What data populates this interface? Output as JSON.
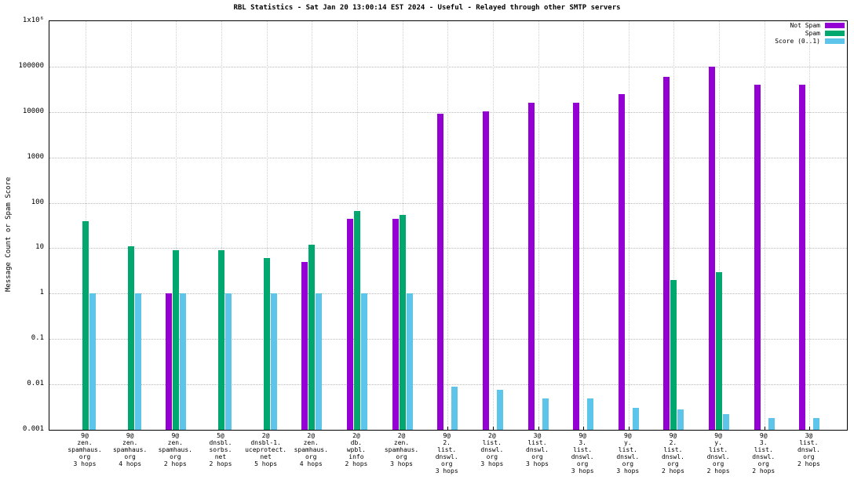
{
  "chart_data": {
    "type": "bar",
    "title": "RBL Statistics - Sat Jan 20 13:00:14 EST 2024 - Useful - Relayed through other SMTP servers",
    "ylabel": "Message Count or Spam Score",
    "xlabel": "",
    "y_scale": "log",
    "ylim": [
      0.001,
      1000000
    ],
    "grid": true,
    "legend_position": "top-right",
    "yticks": [
      {
        "value": 1000000,
        "label": "1x10⁶"
      },
      {
        "value": 100000,
        "label": "100000"
      },
      {
        "value": 10000,
        "label": "10000"
      },
      {
        "value": 1000,
        "label": "1000"
      },
      {
        "value": 100,
        "label": "100"
      },
      {
        "value": 10,
        "label": "10"
      },
      {
        "value": 1,
        "label": "1"
      },
      {
        "value": 0.1,
        "label": "0.1"
      },
      {
        "value": 0.01,
        "label": "0.01"
      },
      {
        "value": 0.001,
        "label": "0.001"
      }
    ],
    "categories": [
      "9@\nzen.\nspamhaus.\norg\n3 hops",
      "9@\nzen.\nspamhaus.\norg\n4 hops",
      "9@\nzen.\nspamhaus.\norg\n2 hops",
      "5@\ndnsbl.\nsorbs.\nnet\n2 hops",
      "2@\ndnsbl-1.\nuceprotect.\nnet\n5 hops",
      "2@\nzen.\nspamhaus.\norg\n4 hops",
      "2@\ndb.\nwpbl.\ninfo\n2 hops",
      "2@\nzen.\nspamhaus.\norg\n3 hops",
      "9@\n2.\nlist.\ndnswl.\norg\n3 hops",
      "2@\nlist.\ndnswl.\norg\n3 hops",
      "3@\nlist.\ndnswl.\norg\n3 hops",
      "9@\n3.\nlist.\ndnswl.\norg\n3 hops",
      "9@\ny.\nlist.\ndnswl.\norg\n3 hops",
      "9@\n2.\nlist.\ndnswl.\norg\n2 hops",
      "9@\ny.\nlist.\ndnswl.\norg\n2 hops",
      "9@\n3.\nlist.\ndnswl.\norg\n2 hops",
      "3@\nlist.\ndnswl.\norg\n2 hops"
    ],
    "series": [
      {
        "name": "Not Spam",
        "color": "#9400d3",
        "values": [
          null,
          null,
          1,
          null,
          null,
          5,
          45,
          45,
          9000,
          10500,
          16000,
          16000,
          25000,
          60000,
          100000,
          40000,
          40000
        ]
      },
      {
        "name": "Spam",
        "color": "#00a870",
        "values": [
          40,
          11,
          9,
          9,
          6,
          12,
          65,
          55,
          null,
          null,
          null,
          null,
          null,
          2,
          3,
          null,
          null
        ]
      },
      {
        "name": "Score (0..1)",
        "color": "#5ec5ea",
        "values": [
          1,
          1,
          1,
          1,
          1,
          1,
          1,
          1,
          0.009,
          0.0075,
          0.005,
          0.005,
          0.003,
          0.0028,
          0.0022,
          0.0018,
          0.0018
        ]
      }
    ]
  }
}
